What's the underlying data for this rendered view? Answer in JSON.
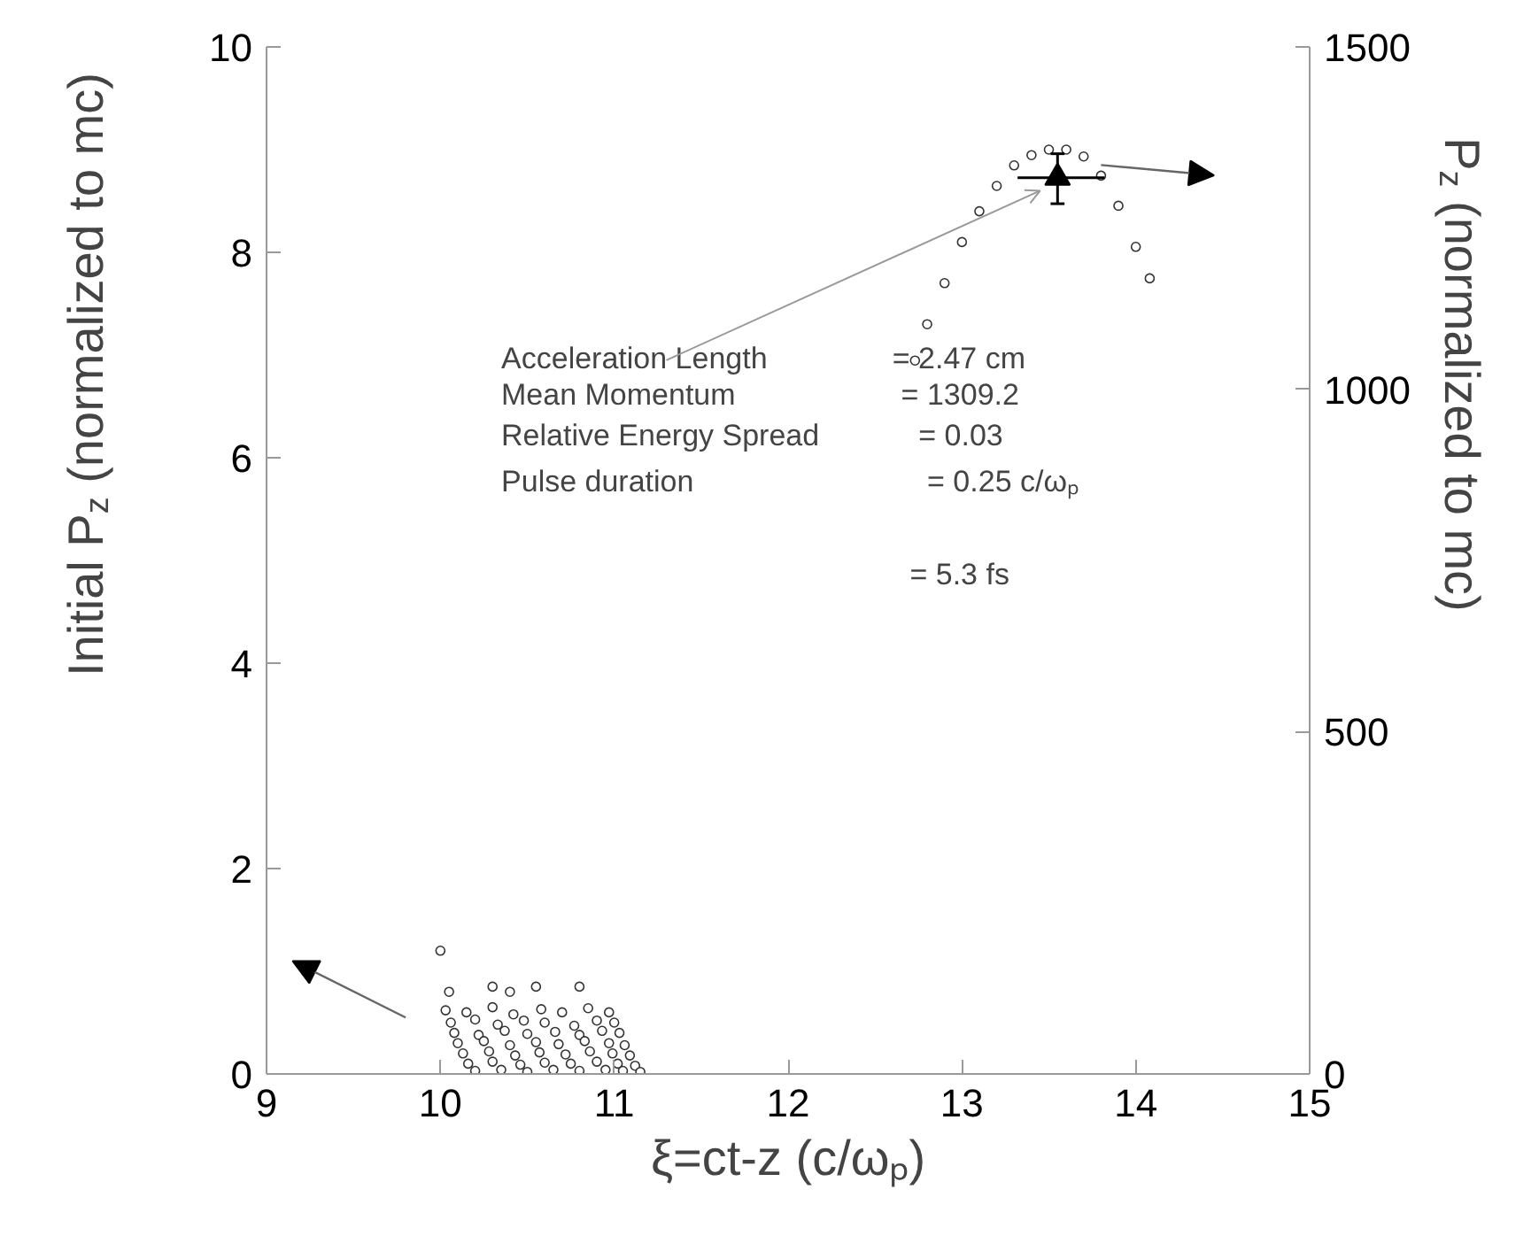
{
  "chart_data": {
    "type": "scatter",
    "xlabel": "ξ=ct-z (c/ωₚ)",
    "ylabel": "Initial P$_{z}$ (normalized to mc)",
    "y2label": "P$_{z}$ (normalized to mc)",
    "xlim": [
      9,
      15
    ],
    "xticks": [
      9,
      10,
      11,
      12,
      13,
      14,
      15
    ],
    "ylim": [
      0,
      10
    ],
    "yticks": [
      0,
      2,
      4,
      6,
      8,
      10
    ],
    "y2lim": [
      0,
      1500
    ],
    "y2ticks": [
      0,
      500,
      1000,
      1500
    ],
    "grid": false,
    "legend": false,
    "marker": "circle",
    "series": [
      {
        "color": "#333333",
        "axis": "y",
        "x": [
          10.0,
          10.05,
          10.3,
          10.4,
          10.55,
          10.8,
          10.03,
          10.15,
          10.3,
          10.42,
          10.58,
          10.7,
          10.85,
          10.97,
          10.06,
          10.2,
          10.33,
          10.48,
          10.6,
          10.77,
          10.9,
          11.0,
          10.08,
          10.22,
          10.37,
          10.5,
          10.66,
          10.8,
          10.93,
          11.03,
          10.1,
          10.25,
          10.4,
          10.55,
          10.68,
          10.83,
          10.97,
          11.06,
          10.13,
          10.28,
          10.43,
          10.57,
          10.72,
          10.86,
          10.99,
          11.09,
          10.16,
          10.3,
          10.46,
          10.6,
          10.75,
          10.9,
          11.02,
          11.12,
          10.2,
          10.35,
          10.5,
          10.65,
          10.8,
          10.95,
          11.05,
          11.15
        ],
        "values": [
          1.2,
          0.8,
          0.85,
          0.8,
          0.85,
          0.85,
          0.62,
          0.6,
          0.65,
          0.58,
          0.63,
          0.6,
          0.64,
          0.6,
          0.5,
          0.53,
          0.48,
          0.52,
          0.5,
          0.47,
          0.52,
          0.5,
          0.4,
          0.38,
          0.42,
          0.39,
          0.41,
          0.38,
          0.42,
          0.4,
          0.3,
          0.32,
          0.28,
          0.31,
          0.29,
          0.32,
          0.3,
          0.28,
          0.2,
          0.22,
          0.18,
          0.21,
          0.19,
          0.22,
          0.2,
          0.18,
          0.1,
          0.12,
          0.09,
          0.11,
          0.1,
          0.12,
          0.1,
          0.08,
          0.03,
          0.04,
          0.02,
          0.04,
          0.03,
          0.04,
          0.03,
          0.02
        ]
      },
      {
        "color": "#333333",
        "axis": "y2",
        "x": [
          12.73,
          12.8,
          12.9,
          13.0,
          13.1,
          13.2,
          13.3,
          13.4,
          13.5,
          13.6,
          13.7,
          13.8,
          13.9,
          14.0,
          14.08
        ],
        "values": [
          1042,
          1095,
          1155,
          1215,
          1260,
          1297,
          1327,
          1342,
          1350,
          1350,
          1340,
          1312,
          1268,
          1208,
          1162
        ]
      },
      {
        "color": "#000000",
        "axis": "y2",
        "marker": "triangle",
        "x": [
          13.55
        ],
        "values": [
          1309
        ],
        "errors": [
          [
            1271,
            1344
          ]
        ],
        "xerrors": [
          [
            13.32,
            13.82
          ]
        ]
      }
    ],
    "annotations": [
      "Acceleration Length",
      "= 2.47 cm",
      "Mean Momentum",
      "= 1309.2",
      "Relative Energy Spread",
      "= 0.03",
      "Pulse duration",
      "= 0.25 c/ωₚ",
      "= 5.3 fs"
    ]
  }
}
